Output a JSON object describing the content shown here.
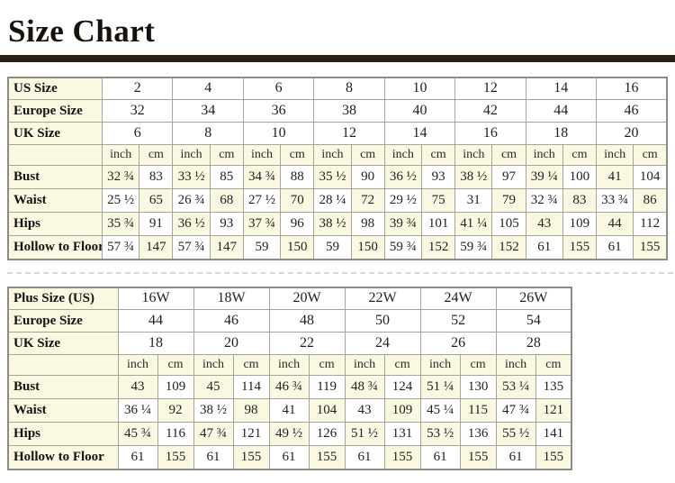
{
  "page": {
    "title": "Size Chart"
  },
  "colors": {
    "cream": "#faf8e1",
    "rule": "#2b2014",
    "grid_border": "#a5a59c",
    "outer_border": "#8c8c83"
  },
  "units": {
    "inch": "inch",
    "cm": "cm"
  },
  "standard_table": {
    "size_rows": [
      {
        "label": "US Size",
        "values": [
          "2",
          "4",
          "6",
          "8",
          "10",
          "12",
          "14",
          "16"
        ]
      },
      {
        "label": "Europe Size",
        "values": [
          "32",
          "34",
          "36",
          "38",
          "40",
          "42",
          "44",
          "46"
        ]
      },
      {
        "label": "UK Size",
        "values": [
          "6",
          "8",
          "10",
          "12",
          "14",
          "16",
          "18",
          "20"
        ]
      }
    ],
    "measure_rows": [
      {
        "label": "Bust",
        "pairs": [
          [
            "32 ¾",
            "83"
          ],
          [
            "33 ½",
            "85"
          ],
          [
            "34 ¾",
            "88"
          ],
          [
            "35 ½",
            "90"
          ],
          [
            "36 ½",
            "93"
          ],
          [
            "38 ½",
            "97"
          ],
          [
            "39 ¼",
            "100"
          ],
          [
            "41",
            "104"
          ]
        ]
      },
      {
        "label": "Waist",
        "pairs": [
          [
            "25 ½",
            "65"
          ],
          [
            "26 ¾",
            "68"
          ],
          [
            "27 ½",
            "70"
          ],
          [
            "28 ¼",
            "72"
          ],
          [
            "29 ½",
            "75"
          ],
          [
            "31",
            "79"
          ],
          [
            "32 ¾",
            "83"
          ],
          [
            "33 ¾",
            "86"
          ]
        ]
      },
      {
        "label": "Hips",
        "pairs": [
          [
            "35 ¾",
            "91"
          ],
          [
            "36 ½",
            "93"
          ],
          [
            "37 ¾",
            "96"
          ],
          [
            "38 ½",
            "98"
          ],
          [
            "39 ¾",
            "101"
          ],
          [
            "41 ¼",
            "105"
          ],
          [
            "43",
            "109"
          ],
          [
            "44",
            "112"
          ]
        ]
      },
      {
        "label": "Hollow to Floor",
        "pairs": [
          [
            "57 ¾",
            "147"
          ],
          [
            "57 ¾",
            "147"
          ],
          [
            "59",
            "150"
          ],
          [
            "59",
            "150"
          ],
          [
            "59 ¾",
            "152"
          ],
          [
            "59 ¾",
            "152"
          ],
          [
            "61",
            "155"
          ],
          [
            "61",
            "155"
          ]
        ]
      }
    ]
  },
  "plus_table": {
    "size_rows": [
      {
        "label": "Plus Size (US)",
        "values": [
          "16W",
          "18W",
          "20W",
          "22W",
          "24W",
          "26W"
        ]
      },
      {
        "label": "Europe Size",
        "values": [
          "44",
          "46",
          "48",
          "50",
          "52",
          "54"
        ]
      },
      {
        "label": "UK Size",
        "values": [
          "18",
          "20",
          "22",
          "24",
          "26",
          "28"
        ]
      }
    ],
    "measure_rows": [
      {
        "label": "Bust",
        "pairs": [
          [
            "43",
            "109"
          ],
          [
            "45",
            "114"
          ],
          [
            "46 ¾",
            "119"
          ],
          [
            "48 ¾",
            "124"
          ],
          [
            "51 ¼",
            "130"
          ],
          [
            "53 ¼",
            "135"
          ]
        ]
      },
      {
        "label": "Waist",
        "pairs": [
          [
            "36 ¼",
            "92"
          ],
          [
            "38 ½",
            "98"
          ],
          [
            "41",
            "104"
          ],
          [
            "43",
            "109"
          ],
          [
            "45 ¼",
            "115"
          ],
          [
            "47 ¾",
            "121"
          ]
        ]
      },
      {
        "label": "Hips",
        "pairs": [
          [
            "45 ¾",
            "116"
          ],
          [
            "47 ¾",
            "121"
          ],
          [
            "49 ½",
            "126"
          ],
          [
            "51 ½",
            "131"
          ],
          [
            "53 ½",
            "136"
          ],
          [
            "55 ½",
            "141"
          ]
        ]
      },
      {
        "label": "Hollow to Floor",
        "pairs": [
          [
            "61",
            "155"
          ],
          [
            "61",
            "155"
          ],
          [
            "61",
            "155"
          ],
          [
            "61",
            "155"
          ],
          [
            "61",
            "155"
          ],
          [
            "61",
            "155"
          ]
        ]
      }
    ]
  }
}
